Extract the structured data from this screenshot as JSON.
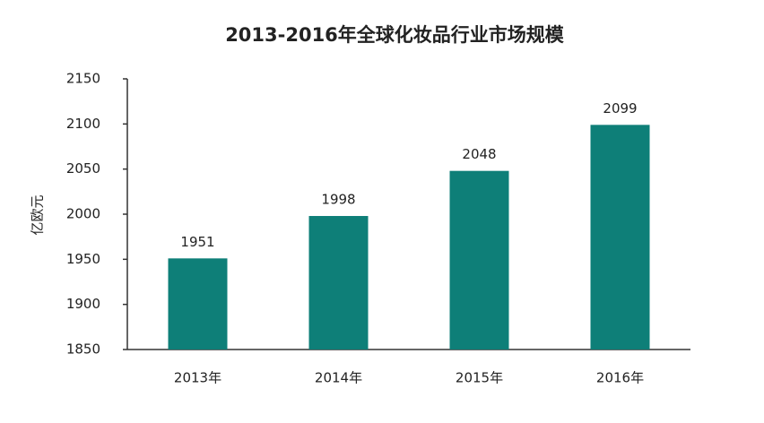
{
  "chart_data": {
    "type": "bar",
    "title": "2013-2016年全球化妆品行业市场规模",
    "y_label": "亿欧元",
    "categories": [
      "2013年",
      "2014年",
      "2015年",
      "2016年"
    ],
    "values": [
      1951,
      1998,
      2048,
      2099
    ],
    "color": "#0e7f78",
    "ylim": [
      1850,
      2150
    ],
    "yticks": [
      1850,
      1900,
      1950,
      2000,
      2050,
      2100,
      2150
    ],
    "grid": false
  }
}
